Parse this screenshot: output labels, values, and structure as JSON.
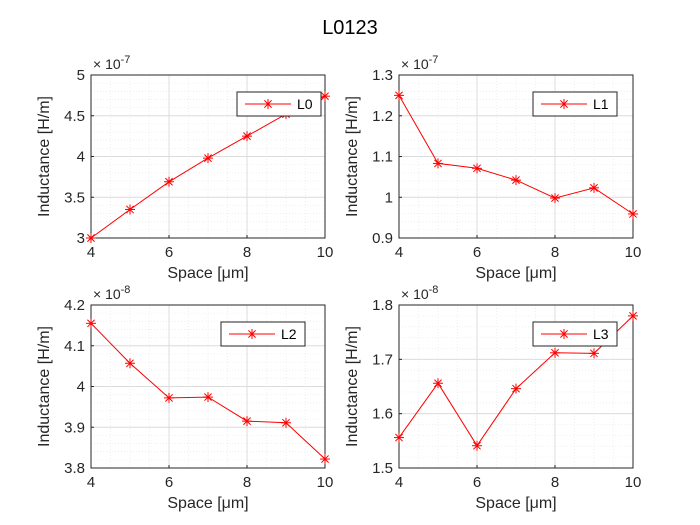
{
  "figure_title": "L0123",
  "colors": {
    "series": "#ff0000",
    "major_grid": "#dcdcdc",
    "minor_grid": "#ececec",
    "axes": "#262626"
  },
  "marker": "asterisk",
  "chart_data": [
    {
      "type": "line",
      "x": [
        4,
        5,
        6,
        7,
        8,
        9,
        10
      ],
      "series": [
        {
          "name": "L0",
          "values": [
            3.0,
            3.35,
            3.69,
            3.98,
            4.25,
            4.52,
            4.74
          ]
        }
      ],
      "xlabel": "Space [μm]",
      "ylabel": "Inductance [H/m]",
      "xlim": [
        4,
        10
      ],
      "ylim": [
        3,
        5
      ],
      "xticks": [
        4,
        6,
        8,
        10
      ],
      "yticks": [
        3,
        3.5,
        4,
        4.5,
        5
      ],
      "ytick_labels": [
        "3",
        "3.5",
        "4",
        "4.5",
        "5"
      ],
      "exponent_base": "× 10",
      "exponent": "-7",
      "grid": "on (major and minor)",
      "legend_position": "top-right"
    },
    {
      "type": "line",
      "x": [
        4,
        5,
        6,
        7,
        8,
        9,
        10
      ],
      "series": [
        {
          "name": "L1",
          "values": [
            1.25,
            1.083,
            1.071,
            1.042,
            0.998,
            1.023,
            0.959
          ]
        }
      ],
      "xlabel": "Space [μm]",
      "ylabel": "Inductance [H/m]",
      "xlim": [
        4,
        10
      ],
      "ylim": [
        0.9,
        1.3
      ],
      "xticks": [
        4,
        6,
        8,
        10
      ],
      "yticks": [
        0.9,
        1.0,
        1.1,
        1.2,
        1.3
      ],
      "ytick_labels": [
        "0.9",
        "1",
        "1.1",
        "1.2",
        "1.3"
      ],
      "exponent_base": "× 10",
      "exponent": "-7",
      "grid": "on (major and minor)",
      "legend_position": "top-right"
    },
    {
      "type": "line",
      "x": [
        4,
        5,
        6,
        7,
        8,
        9,
        10
      ],
      "series": [
        {
          "name": "L2",
          "values": [
            4.155,
            4.057,
            3.972,
            3.974,
            3.915,
            3.911,
            3.822
          ]
        }
      ],
      "xlabel": "Space [μm]",
      "ylabel": "Inductance [H/m]",
      "xlim": [
        4,
        10
      ],
      "ylim": [
        3.8,
        4.2
      ],
      "xticks": [
        4,
        6,
        8,
        10
      ],
      "yticks": [
        3.8,
        3.9,
        4.0,
        4.1,
        4.2
      ],
      "ytick_labels": [
        "3.8",
        "3.9",
        "4",
        "4.1",
        "4.2"
      ],
      "exponent_base": "× 10",
      "exponent": "-8",
      "grid": "on (major and minor)",
      "legend_position": "top-right"
    },
    {
      "type": "line",
      "x": [
        4,
        5,
        6,
        7,
        8,
        9,
        10
      ],
      "series": [
        {
          "name": "L3",
          "values": [
            1.556,
            1.656,
            1.541,
            1.646,
            1.712,
            1.711,
            1.78
          ]
        }
      ],
      "xlabel": "Space [μm]",
      "ylabel": "Inductance [H/m]",
      "xlim": [
        4,
        10
      ],
      "ylim": [
        1.5,
        1.8
      ],
      "xticks": [
        4,
        6,
        8,
        10
      ],
      "yticks": [
        1.5,
        1.6,
        1.7,
        1.8
      ],
      "ytick_labels": [
        "1.5",
        "1.6",
        "1.7",
        "1.8"
      ],
      "exponent_base": "× 10",
      "exponent": "-8",
      "grid": "on (major and minor)",
      "legend_position": "top-right"
    }
  ]
}
